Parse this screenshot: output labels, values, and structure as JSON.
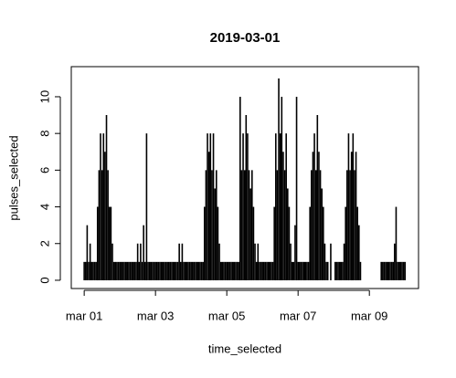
{
  "chart_data": {
    "type": "spike",
    "title": "2019-03-01",
    "x_label": "time_selected",
    "y_label": "pulses_selected",
    "x": [
      0,
      1,
      2,
      3,
      4,
      5,
      6,
      7,
      8,
      9,
      10,
      11,
      12,
      13,
      14,
      15,
      16,
      17,
      18,
      19,
      20,
      21,
      22,
      23,
      24,
      25,
      26,
      27,
      28,
      29,
      30,
      31,
      32,
      33,
      34,
      35,
      36,
      37,
      38,
      39,
      40,
      41,
      42,
      43,
      44,
      45,
      46,
      47,
      48,
      49,
      50,
      51,
      52,
      53,
      54,
      55,
      56,
      57,
      58,
      59,
      60,
      61,
      62,
      63,
      64,
      65,
      66,
      67,
      68,
      69,
      70,
      71,
      72,
      73,
      74,
      75,
      76,
      77,
      78,
      79,
      80,
      81,
      82,
      83,
      84,
      85,
      86,
      87,
      88,
      89,
      90,
      91,
      92,
      93,
      94,
      95,
      96,
      97,
      98,
      99,
      100,
      101,
      102,
      103,
      104,
      105,
      106,
      107,
      108,
      109,
      110,
      111,
      112,
      113,
      114,
      115,
      116,
      117,
      118,
      119,
      120,
      121,
      122,
      123,
      124,
      125,
      126,
      127,
      128,
      129,
      130,
      131,
      132,
      133,
      134,
      135,
      136,
      137,
      138,
      139,
      140,
      141,
      142,
      143,
      144,
      145,
      146,
      147,
      148,
      149,
      150,
      151,
      152,
      153,
      154,
      155,
      156,
      157,
      158,
      159,
      160,
      161,
      162,
      163,
      164,
      165,
      166,
      167,
      168,
      169,
      170,
      171,
      172,
      173,
      174,
      175,
      176,
      177,
      178,
      179,
      180,
      181,
      182,
      183,
      184,
      185,
      186,
      187,
      188,
      189,
      190,
      191,
      192,
      193,
      194,
      195,
      196,
      197,
      198,
      199,
      200,
      201,
      202,
      203,
      204,
      205,
      206,
      207,
      208,
      209,
      210,
      211,
      212,
      213,
      214,
      215,
      216
    ],
    "values": [
      1,
      1,
      3,
      1,
      2,
      1,
      1,
      1,
      1,
      4,
      6,
      8,
      6,
      8,
      7,
      9,
      6,
      4,
      4,
      2,
      1,
      1,
      1,
      1,
      1,
      1,
      1,
      1,
      1,
      1,
      1,
      1,
      1,
      1,
      1,
      1,
      2,
      1,
      2,
      1,
      3,
      1,
      8,
      1,
      1,
      1,
      1,
      1,
      1,
      1,
      1,
      1,
      1,
      1,
      1,
      1,
      1,
      1,
      1,
      1,
      1,
      1,
      1,
      1,
      2,
      1,
      2,
      1,
      1,
      1,
      1,
      1,
      1,
      1,
      1,
      1,
      1,
      1,
      1,
      1,
      1,
      4,
      6,
      8,
      7,
      8,
      6,
      8,
      5,
      6,
      4,
      2,
      1,
      1,
      1,
      1,
      1,
      1,
      1,
      1,
      1,
      1,
      1,
      1,
      1,
      10,
      6,
      8,
      6,
      9,
      8,
      6,
      5,
      6,
      4,
      2,
      1,
      2,
      1,
      1,
      1,
      1,
      1,
      1,
      1,
      1,
      1,
      1,
      4,
      8,
      6,
      11,
      8,
      10,
      7,
      6,
      8,
      5,
      4,
      2,
      1,
      1,
      3,
      10,
      1,
      1,
      1,
      1,
      1,
      1,
      1,
      1,
      4,
      6,
      7,
      8,
      6,
      9,
      7,
      6,
      5,
      4,
      2,
      1,
      1,
      0,
      2,
      0,
      0,
      1,
      1,
      1,
      1,
      1,
      1,
      2,
      4,
      6,
      8,
      6,
      7,
      8,
      6,
      7,
      4,
      3,
      1,
      0,
      0,
      0,
      0,
      0,
      0,
      0,
      0,
      0,
      0,
      0,
      0,
      0,
      1,
      1,
      1,
      1,
      1,
      1,
      1,
      1,
      1,
      2,
      4,
      1,
      1,
      1,
      1,
      1,
      1
    ],
    "color": "#000000",
    "xlim": [
      -8.7,
      225.1
    ],
    "xticks": [
      {
        "value": 0,
        "label": "mar 01"
      },
      {
        "value": 48,
        "label": "mar 03"
      },
      {
        "value": 96,
        "label": "mar 05"
      },
      {
        "value": 144,
        "label": "mar 07"
      },
      {
        "value": 192,
        "label": "mar 09"
      }
    ],
    "ylim": [
      -0.45,
      11.64
    ],
    "yticks": [
      0,
      2,
      4,
      6,
      8,
      10
    ]
  }
}
